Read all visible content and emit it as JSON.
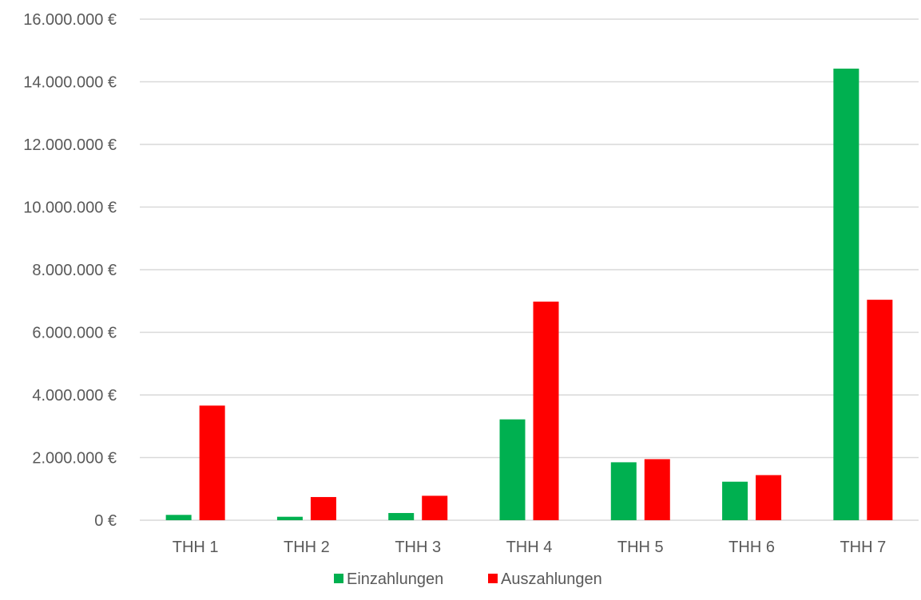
{
  "chart_data": {
    "type": "bar",
    "categories": [
      "THH 1",
      "THH 2",
      "THH 3",
      "THH 4",
      "THH 5",
      "THH 6",
      "THH 7"
    ],
    "series": [
      {
        "name": "Einzahlungen",
        "color": "#00b050",
        "values": [
          170000,
          110000,
          230000,
          3220000,
          1850000,
          1230000,
          14420000
        ]
      },
      {
        "name": "Auszahlungen",
        "color": "#ff0000",
        "values": [
          3660000,
          740000,
          780000,
          6980000,
          1950000,
          1440000,
          7040000
        ]
      }
    ],
    "ylim": [
      0,
      16000000
    ],
    "y_ticks": [
      0,
      2000000,
      4000000,
      6000000,
      8000000,
      10000000,
      12000000,
      14000000,
      16000000
    ],
    "y_tick_labels": [
      "0 €",
      "2.000.000 €",
      "4.000.000 €",
      "6.000.000 €",
      "8.000.000 €",
      "10.000.000 €",
      "12.000.000 €",
      "14.000.000 €",
      "16.000.000 €"
    ],
    "grid": true,
    "legend_position": "bottom",
    "title": "",
    "xlabel": "",
    "ylabel": ""
  }
}
